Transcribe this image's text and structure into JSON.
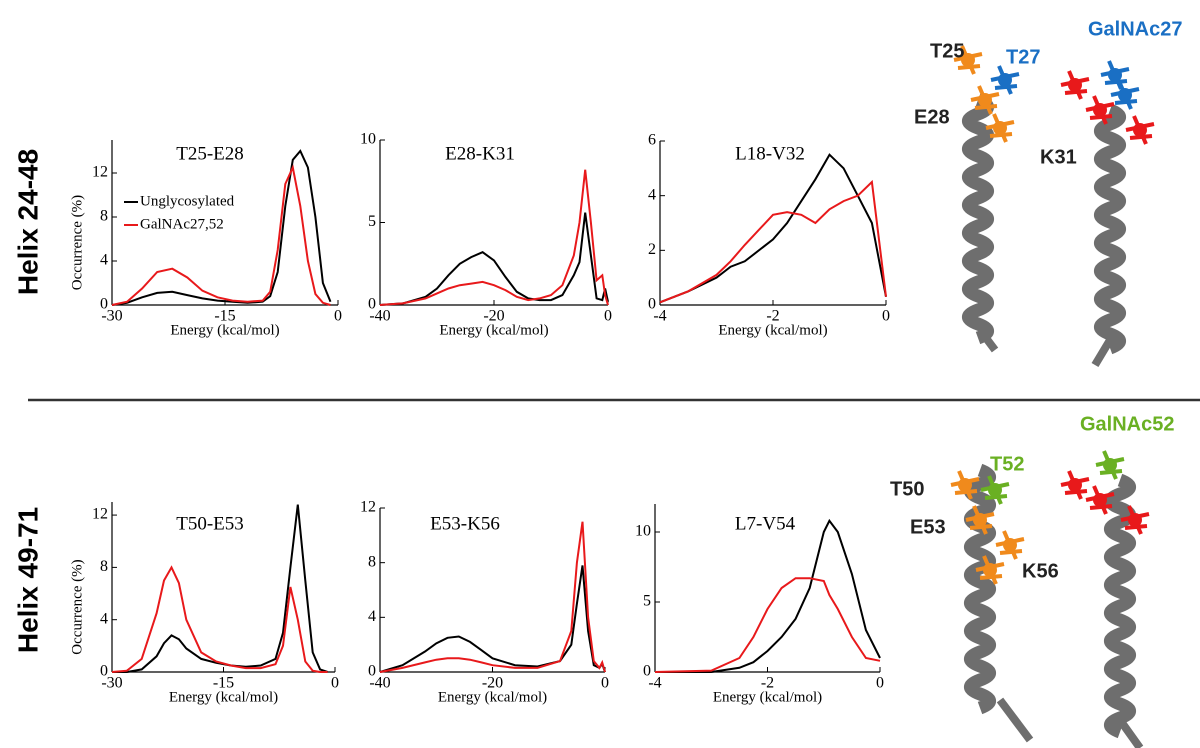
{
  "row_labels": [
    "Helix 24-48",
    "Helix 49-71"
  ],
  "structure_labels": {
    "top": [
      "T25",
      "T27",
      "GalNAc27",
      "E28",
      "K31"
    ],
    "bottom": [
      "GalNAc52",
      "T52",
      "T50",
      "E53",
      "K56"
    ]
  },
  "chart_data": [
    {
      "type": "line",
      "title": "T25-E28",
      "xlabel": "Energy (kcal/mol)",
      "ylabel": "Occurrence (%)",
      "x": [
        -30,
        -28,
        -26,
        -24,
        -22,
        -20,
        -18,
        -16,
        -14,
        -12,
        -10,
        -9,
        -8,
        -7,
        -6,
        -5,
        -4,
        -3,
        -2,
        -1
      ],
      "series": [
        {
          "name": "Unglycosylated",
          "color": "#000000",
          "values": [
            0,
            0.2,
            0.7,
            1.1,
            1.2,
            0.9,
            0.6,
            0.4,
            0.3,
            0.2,
            0.3,
            0.8,
            3,
            9,
            13.2,
            14,
            12.5,
            8,
            2,
            0.3
          ]
        },
        {
          "name": "GalNAc27,52",
          "color": "#e8191b",
          "values": [
            0,
            0.3,
            1.5,
            3,
            3.3,
            2.5,
            1.3,
            0.7,
            0.4,
            0.3,
            0.4,
            1.2,
            5,
            11,
            12.5,
            9,
            4,
            1,
            0.2,
            0
          ]
        }
      ],
      "xlim": [
        -30,
        0
      ],
      "xticks": [
        -30,
        -15,
        0
      ],
      "ylim": [
        0,
        15
      ],
      "yticks": [
        0,
        4,
        8,
        12
      ]
    },
    {
      "type": "line",
      "title": "E28-K31",
      "xlabel": "Energy (kcal/mol)",
      "x": [
        -40,
        -36,
        -32,
        -30,
        -28,
        -26,
        -24,
        -22,
        -20,
        -18,
        -16,
        -14,
        -12,
        -10,
        -8,
        -6,
        -5,
        -4,
        -3,
        -2,
        -1,
        -0.5,
        0
      ],
      "series": [
        {
          "color": "#000000",
          "values": [
            0,
            0.1,
            0.5,
            1,
            1.8,
            2.5,
            2.9,
            3.2,
            2.7,
            1.7,
            0.8,
            0.4,
            0.3,
            0.3,
            0.6,
            1.8,
            2.6,
            5.6,
            3,
            0.4,
            0.3,
            1,
            0.2
          ]
        },
        {
          "color": "#e8191b",
          "values": [
            0,
            0.1,
            0.4,
            0.7,
            1,
            1.2,
            1.3,
            1.4,
            1.2,
            0.9,
            0.5,
            0.3,
            0.4,
            0.6,
            1.2,
            3,
            5,
            8.2,
            5,
            1.5,
            1.8,
            0.6,
            0
          ]
        }
      ],
      "xlim": [
        -40,
        0
      ],
      "xticks": [
        -40,
        -20,
        0
      ],
      "ylim": [
        0,
        10
      ],
      "yticks": [
        0,
        5,
        10
      ]
    },
    {
      "type": "line",
      "title": "L18-V32",
      "xlabel": "Energy (kcal/mol)",
      "x": [
        -4,
        -3.5,
        -3,
        -2.75,
        -2.5,
        -2,
        -1.75,
        -1.5,
        -1.25,
        -1,
        -0.75,
        -0.5,
        -0.25,
        0
      ],
      "series": [
        {
          "color": "#000000",
          "values": [
            0.1,
            0.5,
            1.0,
            1.4,
            1.6,
            2.4,
            3.0,
            3.8,
            4.6,
            5.5,
            5.0,
            4.0,
            3.0,
            0.3
          ]
        },
        {
          "color": "#e8191b",
          "values": [
            0.1,
            0.5,
            1.1,
            1.6,
            2.2,
            3.3,
            3.4,
            3.3,
            3.0,
            3.5,
            3.8,
            4.0,
            4.5,
            0.3
          ]
        }
      ],
      "xlim": [
        -4,
        0
      ],
      "xticks": [
        -4,
        -2,
        0
      ],
      "ylim": [
        0,
        6
      ],
      "yticks": [
        0,
        2,
        4,
        6
      ]
    },
    {
      "type": "line",
      "title": "T50-E53",
      "xlabel": "Energy (kcal/mol)",
      "ylabel": "Occurrence (%)",
      "x": [
        -30,
        -28,
        -26,
        -24,
        -23,
        -22,
        -21,
        -20,
        -18,
        -16,
        -14,
        -12,
        -10,
        -8,
        -7,
        -6,
        -5,
        -4,
        -3,
        -2,
        -1
      ],
      "series": [
        {
          "color": "#000000",
          "values": [
            0,
            0,
            0.2,
            1.2,
            2.2,
            2.8,
            2.5,
            1.8,
            1,
            0.7,
            0.5,
            0.4,
            0.5,
            1,
            3,
            8,
            12.8,
            7,
            1.5,
            0.2,
            0
          ]
        },
        {
          "color": "#e8191b",
          "values": [
            0,
            0.1,
            1,
            4.5,
            7,
            8,
            6.8,
            4,
            1.5,
            0.8,
            0.5,
            0.3,
            0.3,
            0.6,
            2,
            6.5,
            4,
            0.8,
            0.1,
            0,
            0
          ]
        }
      ],
      "xlim": [
        -30,
        0
      ],
      "xticks": [
        -30,
        -15,
        0
      ],
      "ylim": [
        0,
        13
      ],
      "yticks": [
        0,
        4,
        8,
        12
      ]
    },
    {
      "type": "line",
      "title": "E53-K56",
      "xlabel": "Energy (kcal/mol)",
      "x": [
        -40,
        -36,
        -32,
        -30,
        -28,
        -26,
        -24,
        -22,
        -20,
        -16,
        -12,
        -8,
        -6,
        -5,
        -4,
        -3,
        -2,
        -1,
        -0.5,
        0
      ],
      "series": [
        {
          "color": "#000000",
          "values": [
            0,
            0.5,
            1.5,
            2.1,
            2.5,
            2.6,
            2.2,
            1.6,
            1.0,
            0.5,
            0.4,
            0.8,
            2,
            5,
            7.8,
            3,
            0.5,
            0.3,
            0.6,
            0
          ]
        },
        {
          "color": "#e8191b",
          "values": [
            0,
            0.3,
            0.7,
            0.9,
            1.0,
            1.0,
            0.9,
            0.7,
            0.5,
            0.3,
            0.3,
            0.8,
            3,
            8,
            11,
            4,
            0.8,
            0.3,
            0.7,
            0
          ]
        }
      ],
      "xlim": [
        -40,
        0
      ],
      "xticks": [
        -40,
        -20,
        0
      ],
      "ylim": [
        0,
        12
      ],
      "yticks": [
        0,
        4,
        8,
        12
      ]
    },
    {
      "type": "line",
      "title": "L7-V54",
      "xlabel": "Energy (kcal/mol)",
      "x": [
        -4,
        -3,
        -2.5,
        -2.25,
        -2,
        -1.75,
        -1.5,
        -1.25,
        -1,
        -0.9,
        -0.75,
        -0.5,
        -0.25,
        0
      ],
      "series": [
        {
          "color": "#000000",
          "values": [
            0,
            0,
            0.3,
            0.7,
            1.5,
            2.5,
            3.8,
            6,
            10,
            10.8,
            10,
            7,
            3,
            1
          ]
        },
        {
          "color": "#e8191b",
          "values": [
            0,
            0.1,
            1,
            2.5,
            4.5,
            6,
            6.7,
            6.7,
            6.5,
            5.5,
            4.5,
            2.5,
            1,
            0.8
          ]
        }
      ],
      "xlim": [
        -4,
        0
      ],
      "xticks": [
        -4,
        -2,
        0
      ],
      "ylim": [
        0,
        12
      ],
      "yticks": [
        0,
        5,
        10
      ]
    }
  ]
}
